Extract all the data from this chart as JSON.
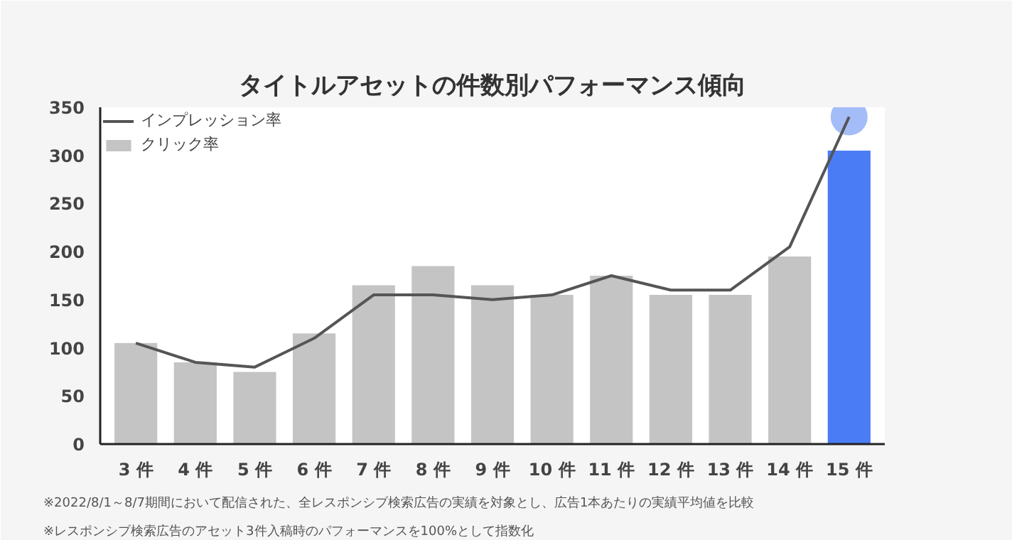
{
  "chart_data": {
    "type": "bar",
    "title": "タイトルアセットの件数別パフォーマンス傾向",
    "categories": [
      "3 件",
      "4 件",
      "5 件",
      "6 件",
      "7 件",
      "8 件",
      "9 件",
      "10 件",
      "11 件",
      "12 件",
      "13 件",
      "14 件",
      "15 件"
    ],
    "series": [
      {
        "name": "インプレッション率",
        "type": "line",
        "color": "#555555",
        "values": [
          105,
          85,
          80,
          110,
          155,
          155,
          150,
          155,
          175,
          160,
          160,
          205,
          340
        ]
      },
      {
        "name": "クリック率",
        "color": "#c4c4c4",
        "colors": [
          "#c4c4c4",
          "#c4c4c4",
          "#c4c4c4",
          "#c4c4c4",
          "#c4c4c4",
          "#c4c4c4",
          "#c4c4c4",
          "#c4c4c4",
          "#c4c4c4",
          "#c4c4c4",
          "#c4c4c4",
          "#c4c4c4",
          "#4a7cf6"
        ],
        "values": [
          105,
          85,
          75,
          115,
          165,
          185,
          165,
          155,
          175,
          155,
          155,
          195,
          305
        ]
      },
      {
        "type": "scatter",
        "color": "#a4bdf8",
        "x": [
          "15 件"
        ],
        "values": [
          340
        ]
      }
    ],
    "ylim": [
      0,
      350
    ],
    "yticks": [
      0,
      50,
      100,
      150,
      200,
      250,
      300,
      350
    ],
    "grid": false,
    "legend": "top left",
    "annotations": [
      "※2022/8/1～8/7期間において配信された、全レスポンシブ検索広告の実績を対象とし、広告1本あたりの実績平均値を比較",
      "※レスポンシブ検索広告のアセット3件入稿時のパフォーマンスを100%として指数化"
    ]
  }
}
